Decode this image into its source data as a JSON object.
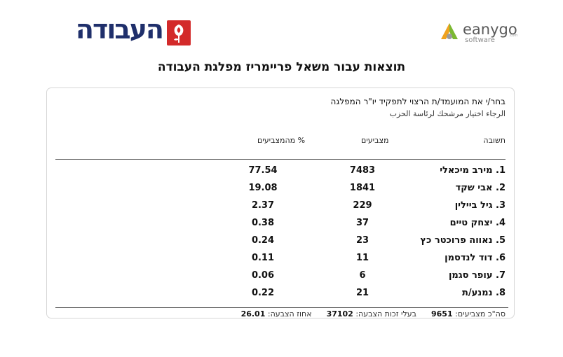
{
  "header": {
    "party_name": "העבודה",
    "vendor_name": "eanygo",
    "vendor_sub": "software",
    "vendor_tld": ".com"
  },
  "page_title": "תוצאות עבור משאל פריימריז מפלגת העבודה",
  "question": {
    "text": "בחר/י את המועמד/ת הרצוי לתפקיד יו\"ר המפלגה",
    "subtext": "الرجاء اختيار مرشحك لرئاسة الحزب"
  },
  "table": {
    "headers": {
      "answer": "תשובה",
      "voters": "מצביעים",
      "percent": "% מהמצביעים"
    },
    "rows": [
      {
        "answer": "1. מירב מיכאלי",
        "votes": "7483",
        "percent": "77.54"
      },
      {
        "answer": "2. אבי שקד",
        "votes": "1841",
        "percent": "19.08"
      },
      {
        "answer": "3. גיל ביילין",
        "votes": "229",
        "percent": "2.37"
      },
      {
        "answer": "4. יצחק טיים",
        "votes": "37",
        "percent": "0.38"
      },
      {
        "answer": "5. נאווה פרוכטר כץ",
        "votes": "23",
        "percent": "0.24"
      },
      {
        "answer": "6. דוד לנדסמן",
        "votes": "11",
        "percent": "0.11"
      },
      {
        "answer": "7. עופר סגמן",
        "votes": "6",
        "percent": "0.06"
      },
      {
        "answer": "8. נמנע/ת",
        "votes": "21",
        "percent": "0.22"
      }
    ]
  },
  "summary": {
    "total_voters_label": "סה\"כ מצביעים:",
    "total_voters": "9651",
    "eligible_label": "בעלי זכות הצבעה:",
    "eligible": "37102",
    "turnout_label": "אחוז הצבעה:",
    "turnout": "26.01"
  },
  "colors": {
    "party_blue": "#1f2f6b",
    "party_red": "#d32a2a",
    "vendor_green": "#7bb832",
    "vendor_orange": "#f0a21e"
  }
}
